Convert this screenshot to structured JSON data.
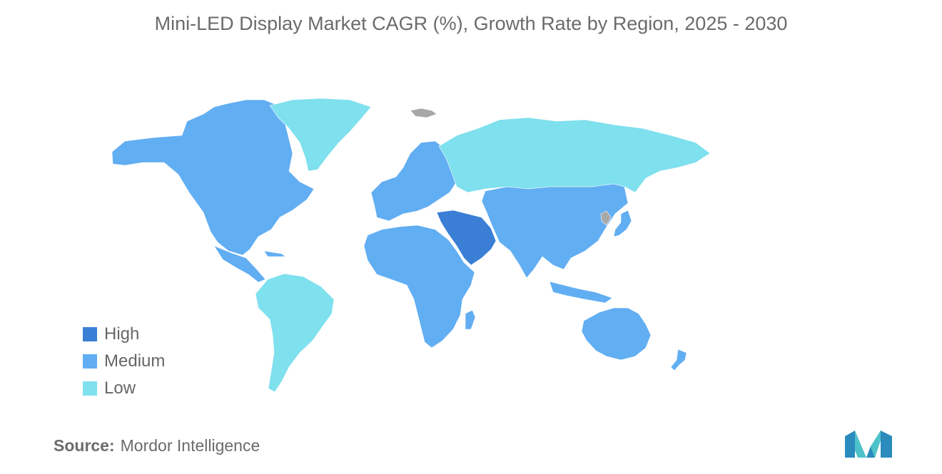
{
  "title": "Mini-LED Display Market CAGR (%), Growth Rate by Region, 2025 - 2030",
  "legend": [
    {
      "label": "High",
      "color": "#3a7fd5"
    },
    {
      "label": "Medium",
      "color": "#62aef2"
    },
    {
      "label": "Low",
      "color": "#7fe0ee"
    }
  ],
  "no_data_color": "#a8a8a8",
  "regions": [
    {
      "name": "North America",
      "level": "Medium"
    },
    {
      "name": "Greenland",
      "level": "Low"
    },
    {
      "name": "South America",
      "level": "Low"
    },
    {
      "name": "Europe",
      "level": "Medium"
    },
    {
      "name": "Russia",
      "level": "Low"
    },
    {
      "name": "Asia",
      "level": "Medium"
    },
    {
      "name": "Middle East",
      "level": "High"
    },
    {
      "name": "Africa",
      "level": "Medium"
    },
    {
      "name": "Australia & New Zealand",
      "level": "Medium"
    }
  ],
  "source": {
    "label": "Source:",
    "value": "Mordor Intelligence"
  }
}
